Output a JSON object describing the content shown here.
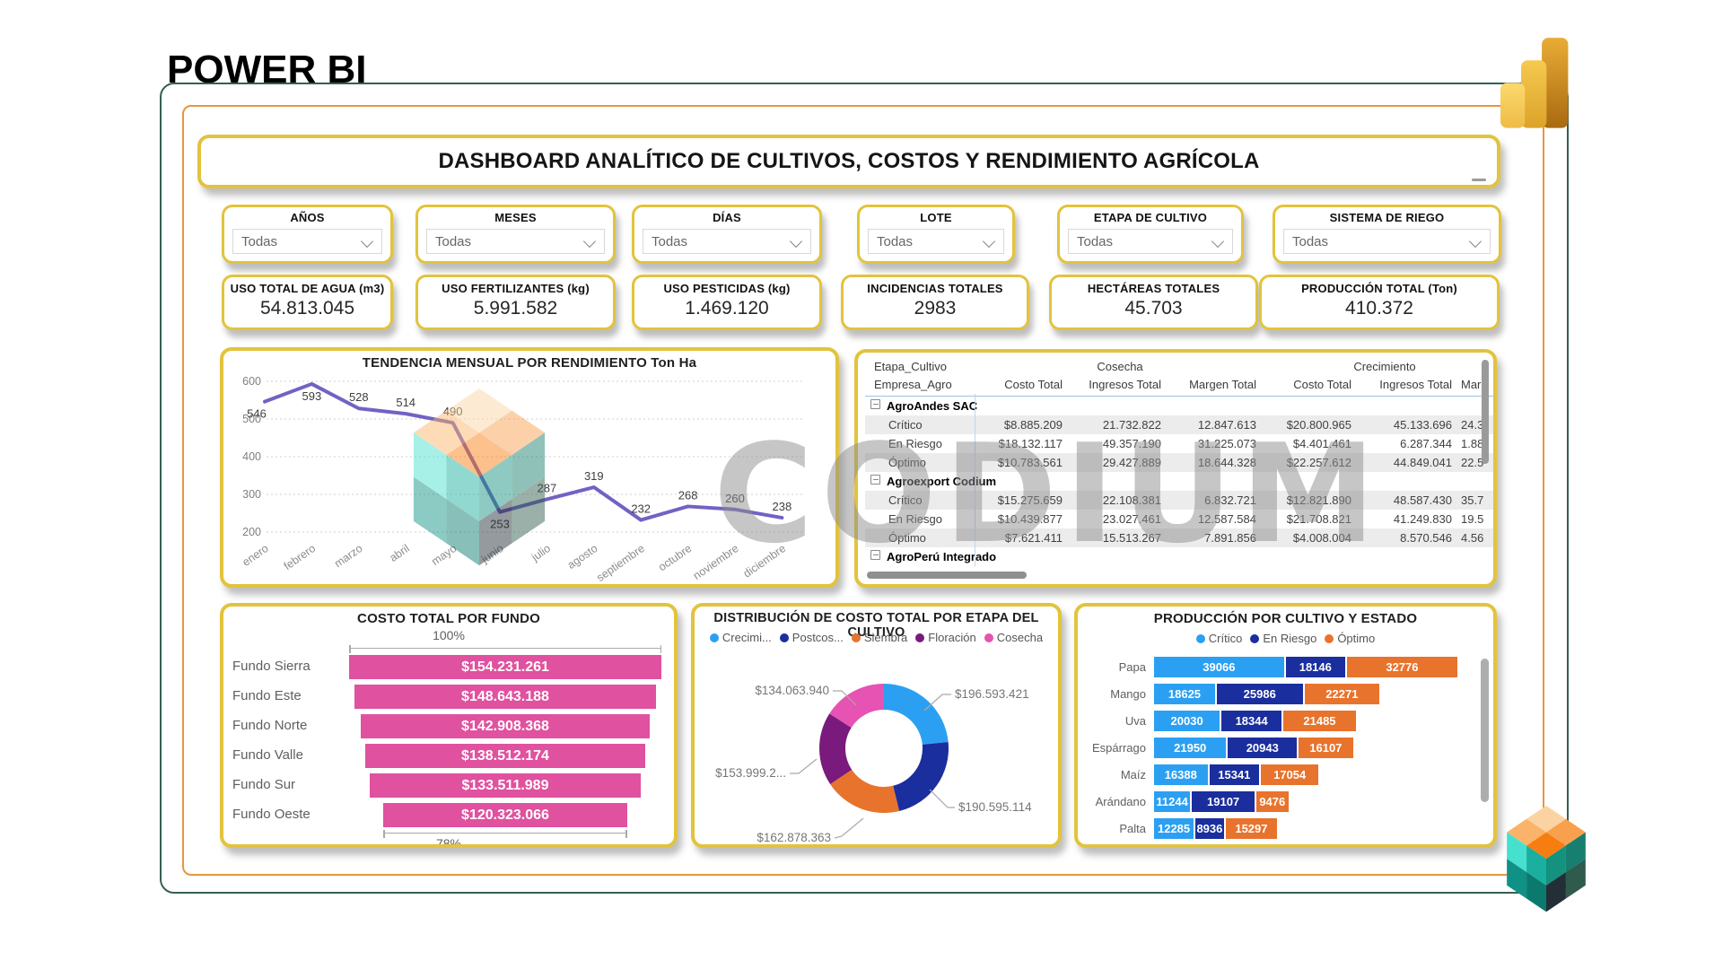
{
  "app": {
    "title": "POWER BI"
  },
  "dashboard": {
    "title": "DASHBOARD ANALÍTICO DE CULTIVOS, COSTOS Y RENDIMIENTO AGRÍCOLA",
    "watermark": "CODIUM"
  },
  "filters": [
    {
      "label": "AÑOS",
      "value": "Todas"
    },
    {
      "label": "MESES",
      "value": "Todas"
    },
    {
      "label": "DÍAS",
      "value": "Todas"
    },
    {
      "label": "LOTE",
      "value": "Todas"
    },
    {
      "label": "ETAPA DE CULTIVO",
      "value": "Todas"
    },
    {
      "label": "SISTEMA DE RIEGO",
      "value": "Todas"
    }
  ],
  "kpis": [
    {
      "label": "USO TOTAL DE AGUA (m3)",
      "value": "54.813.045"
    },
    {
      "label": "USO FERTILIZANTES (kg)",
      "value": "5.991.582"
    },
    {
      "label": "USO PESTICIDAS (kg)",
      "value": "1.469.120"
    },
    {
      "label": "INCIDENCIAS TOTALES",
      "value": "2983"
    },
    {
      "label": "HECTÁREAS TOTALES",
      "value": "45.703"
    },
    {
      "label": "PRODUCCIÓN TOTAL (Ton)",
      "value": "410.372"
    }
  ],
  "chart_data": [
    {
      "id": "monthly_trend",
      "type": "line",
      "title": "TENDENCIA MENSUAL POR RENDIMIENTO Ton Ha",
      "categories": [
        "enero",
        "febrero",
        "marzo",
        "abril",
        "mayo",
        "junio",
        "julio",
        "agosto",
        "septiembre",
        "octubre",
        "noviembre",
        "diciembre"
      ],
      "values": [
        546,
        593,
        528,
        514,
        490,
        253,
        287,
        319,
        232,
        268,
        260,
        238
      ],
      "ylim": [
        200,
        600
      ],
      "ytick_step": 100,
      "grid": true,
      "line_color": "#7262C3"
    },
    {
      "id": "matrix_empresa",
      "type": "table",
      "row_header_top": "Etapa_Cultivo",
      "row_header_bottom": "Empresa_Agro",
      "col_groups": [
        "Cosecha",
        "Crecimiento"
      ],
      "columns": [
        "Costo Total",
        "Ingresos Total",
        "Margen Total",
        "Costo Total",
        "Ingresos Total",
        "Marg"
      ],
      "groups": [
        {
          "name": "AgroAndes SAC",
          "rows": [
            {
              "label": "Crítico",
              "values": [
                "$8.885.209",
                "21.732.822",
                "12.847.613",
                "$20.800.965",
                "45.133.696",
                "24.3"
              ]
            },
            {
              "label": "En Riesgo",
              "values": [
                "$18.132.117",
                "49.357.190",
                "31.225.073",
                "$4.401.461",
                "6.287.344",
                "1.88"
              ]
            },
            {
              "label": "Óptimo",
              "values": [
                "$10.783.561",
                "29.427.889",
                "18.644.328",
                "$22.257.612",
                "44.849.041",
                "22.5"
              ]
            }
          ]
        },
        {
          "name": "Agroexport Codium",
          "rows": [
            {
              "label": "Crítico",
              "values": [
                "$15.275.659",
                "22.108.381",
                "6.832.721",
                "$12.821.890",
                "48.587.430",
                "35.7"
              ]
            },
            {
              "label": "En Riesgo",
              "values": [
                "$10.439.877",
                "23.027.461",
                "12.587.584",
                "$21.708.821",
                "41.249.830",
                "19.5"
              ]
            },
            {
              "label": "Óptimo",
              "values": [
                "$7.621.411",
                "15.513.267",
                "7.891.856",
                "$4.008.004",
                "8.570.546",
                "4.56"
              ]
            }
          ]
        },
        {
          "name": "AgroPerú Integrado",
          "rows": []
        }
      ]
    },
    {
      "id": "funnel_fundo",
      "type": "funnel",
      "title": "COSTO TOTAL POR FUNDO",
      "categories": [
        "Fundo Sierra",
        "Fundo Este",
        "Fundo Norte",
        "Fundo Valle",
        "Fundo Sur",
        "Fundo Oeste"
      ],
      "labels": [
        "$154.231.261",
        "$148.643.188",
        "$142.908.368",
        "$138.512.174",
        "$133.511.989",
        "$120.323.066"
      ],
      "values": [
        154231261,
        148643188,
        142908368,
        138512174,
        133511989,
        120323066
      ],
      "top_percent": "100%",
      "bottom_percent": "78%",
      "bar_color": "#E0519F"
    },
    {
      "id": "donut_etapa",
      "type": "pie",
      "title": "DISTRIBUCIÓN DE COSTO TOTAL POR ETAPA DEL CULTIVO",
      "legend": [
        "Crecimi...",
        "Postcos...",
        "Siembra",
        "Floración",
        "Cosecha"
      ],
      "slices": [
        {
          "name": "Crecimiento",
          "label": "$196.593.421",
          "value": 196593421,
          "color": "#2BA0F2"
        },
        {
          "name": "Postcosecha",
          "label": "$190.595.114",
          "value": 190595114,
          "color": "#1A2E9E"
        },
        {
          "name": "Siembra",
          "label": "$162.878.363",
          "value": 162878363,
          "color": "#E8732C"
        },
        {
          "name": "Floración",
          "label": "$153.999.2...",
          "value": 153999200,
          "color": "#7A1A7C"
        },
        {
          "name": "Cosecha",
          "label": "$134.063.940",
          "value": 134063940,
          "color": "#E653B2"
        }
      ]
    },
    {
      "id": "stacked_produccion",
      "type": "bar",
      "title": "PRODUCCIÓN POR CULTIVO Y ESTADO",
      "categories": [
        "Papa",
        "Mango",
        "Uva",
        "Espárrago",
        "Maíz",
        "Arándano",
        "Palta"
      ],
      "series": [
        {
          "name": "Crítico",
          "color": "#2BA0F2",
          "values": [
            39066,
            18625,
            20030,
            21950,
            16388,
            11244,
            12285
          ]
        },
        {
          "name": "En Riesgo",
          "color": "#1A2E9E",
          "values": [
            18146,
            25986,
            18344,
            20943,
            15341,
            19107,
            8936
          ]
        },
        {
          "name": "Óptimo",
          "color": "#E8732C",
          "values": [
            32776,
            22271,
            21485,
            16107,
            17054,
            9476,
            15297
          ]
        }
      ]
    }
  ],
  "colors": {
    "panel_border": "#E2C33D",
    "frame_outer": "#34604F",
    "frame_inner": "#E8953F",
    "funnel_bar": "#E0519F",
    "line": "#7262C3",
    "critico": "#2BA0F2",
    "en_riesgo": "#1A2E9E",
    "optimo": "#E8732C"
  }
}
